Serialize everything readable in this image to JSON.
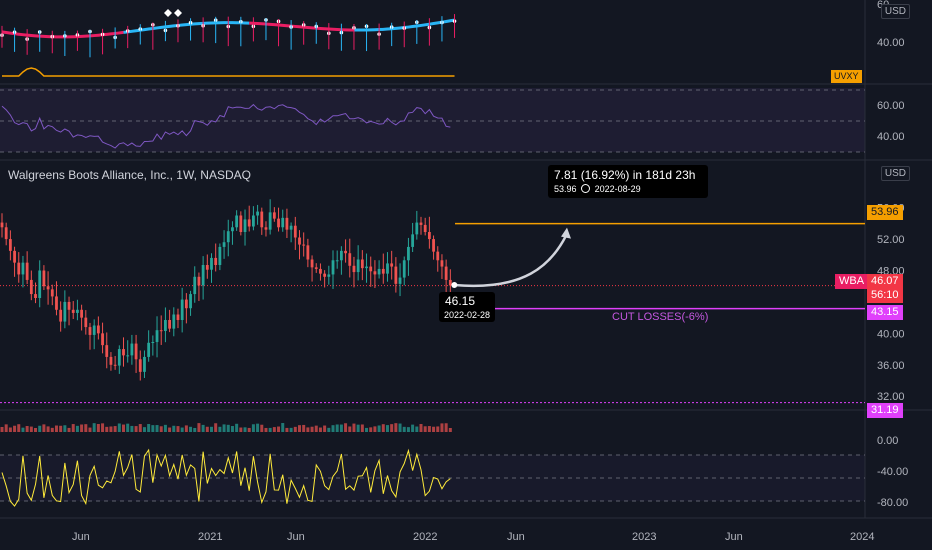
{
  "header": {
    "symbol_line": "Walgreens Boots Alliance, Inc., 1W, NASDAQ",
    "currency": "USD"
  },
  "colors": {
    "bg": "#131722",
    "up": "#26a69a",
    "down": "#ef5350",
    "orange": "#f59f00",
    "magenta": "#e040fb",
    "rsi": "#7e57c2",
    "stoch": "#ffeb3b",
    "ma_pink": "#e91e63",
    "ma_cyan": "#29b6f6",
    "tag_wba": "#e91e63",
    "tag_red": "#f23645",
    "tag_magenta": "#e040fb"
  },
  "top_pane": {
    "ticks": [
      "60",
      "40.00"
    ],
    "legend_tag": "UVXY"
  },
  "rsi_pane": {
    "ticks": [
      "60.00",
      "40.00"
    ]
  },
  "osc_pane": {
    "ticks": [
      "0.00",
      "-40.00",
      "-80.00"
    ]
  },
  "main": {
    "ticks": [
      "56.00",
      "52.00",
      "48.00",
      "40.00",
      "36.00",
      "32.00"
    ],
    "price_tags": {
      "target": "53.96",
      "last": "46.07",
      "last_label": "WBA",
      "countdown": "56:10",
      "stop": "43.15",
      "bottom": "31.19"
    },
    "target_line": 53.96,
    "stop_line": 43.15,
    "stop_label": "CUT LOSSES(-6%)",
    "measure": {
      "headline": "7.81 (16.92%) in 181d 23h",
      "sub": "53.96",
      "sub_date": "2022-08-29",
      "clock_icon": "clock-icon"
    },
    "entry": {
      "price": "46.15",
      "date": "2022-02-28"
    }
  },
  "x_axis": [
    "Jun",
    "2021",
    "Jun",
    "2022",
    "Jun",
    "2023",
    "Jun",
    "2024"
  ],
  "chart_data": {
    "type": "candlestick",
    "title": "Walgreens Boots Alliance, Inc., 1W, NASDAQ",
    "xlabel": "",
    "ylabel": "USD",
    "ylim": [
      30.5,
      58.5
    ],
    "series": [
      {
        "name": "WBA",
        "close": [
          53.5,
          52,
          50.5,
          49,
          47.5,
          49,
          46.8,
          45,
          44.5,
          48,
          46,
          45.6,
          44.7,
          43,
          41.5,
          44,
          43,
          42.6,
          43,
          42,
          40.8,
          39.8,
          41,
          40,
          38.5,
          37,
          36,
          35.9,
          38,
          37.2,
          37.2,
          38.7,
          36.7,
          35.1,
          37,
          38.8,
          38.9,
          40.4,
          40.3,
          41.7,
          40.6,
          42.4,
          41.7,
          44.3,
          43.2,
          45,
          47.2,
          46.1,
          48.7,
          48.1,
          49.6,
          48.7,
          51,
          51.6,
          53,
          53.5,
          55,
          52.9,
          54.5,
          53.6,
          55,
          55.5,
          53.5,
          53.2,
          55.4,
          54.6,
          53.5,
          54.7,
          53.2,
          53.7,
          52.2,
          51.3,
          51.2,
          49.4,
          48.4,
          48.2,
          47.6,
          47.2,
          47.5,
          49.3,
          49.3,
          50.5,
          50.2,
          48.6,
          47.8,
          49.4,
          48.3,
          48.5,
          47.9,
          47.5,
          48.2,
          47.6,
          48.9,
          48.5,
          46.3,
          47.1,
          49.3,
          51,
          52.6,
          54.1,
          53.8,
          52.9,
          52,
          50.4,
          49.3,
          48.5,
          46.8,
          46.1
        ]
      }
    ],
    "stats": {
      "target": 53.96,
      "target_date": "2022-08-29",
      "entry": 46.15,
      "entry_date": "2022-02-28",
      "change": 7.81,
      "change_pct": 16.92,
      "duration": "181d 23h",
      "last": 46.07,
      "stop": 43.15,
      "stop_label": "CUT LOSSES(-6%)"
    },
    "x_ticks": [
      "Jun",
      "2021",
      "Jun",
      "2022",
      "Jun",
      "2023",
      "Jun",
      "2024"
    ]
  }
}
